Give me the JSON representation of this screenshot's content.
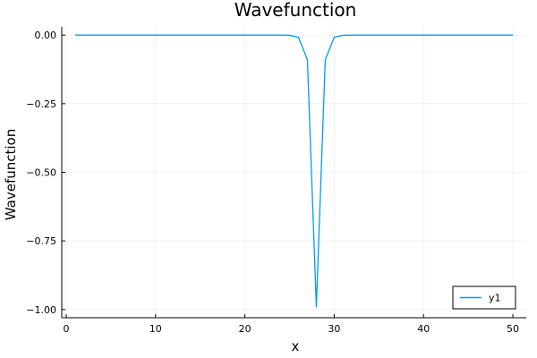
{
  "chart_data": {
    "type": "line",
    "title": "Wavefunction",
    "xlabel": "x",
    "ylabel": "Wavefunction",
    "xlim": [
      -0.5,
      51.5
    ],
    "ylim": [
      -1.03,
      0.03
    ],
    "xticks": [
      0,
      10,
      20,
      30,
      40,
      50
    ],
    "xtick_labels": [
      "0",
      "10",
      "20",
      "30",
      "40",
      "50"
    ],
    "yticks": [
      0.0,
      -0.25,
      -0.5,
      -0.75,
      -1.0
    ],
    "ytick_labels": [
      "0.00",
      "−0.25",
      "−0.50",
      "−0.75",
      "−1.00"
    ],
    "grid": true,
    "legend_position": "bottom-right",
    "series": [
      {
        "name": "y1",
        "color": "#009AFA",
        "x": [
          1,
          2,
          3,
          4,
          5,
          6,
          7,
          8,
          9,
          10,
          11,
          12,
          13,
          14,
          15,
          16,
          17,
          18,
          19,
          20,
          21,
          22,
          23,
          24,
          25,
          26,
          27,
          28,
          29,
          30,
          31,
          32,
          33,
          34,
          35,
          36,
          37,
          38,
          39,
          40,
          41,
          42,
          43,
          44,
          45,
          46,
          47,
          48,
          49,
          50
        ],
        "y": [
          0,
          0,
          0,
          0,
          0,
          0,
          0,
          0,
          0,
          0,
          0,
          0,
          0,
          0,
          0,
          0,
          0,
          0,
          0,
          0,
          0,
          0,
          0,
          0,
          -0.0008,
          -0.008,
          -0.09,
          -0.99,
          -0.09,
          -0.008,
          -0.0008,
          0,
          0,
          0,
          0,
          0,
          0,
          0,
          0,
          0,
          0,
          0,
          0,
          0,
          0,
          0,
          0,
          0,
          0,
          0
        ]
      }
    ]
  }
}
